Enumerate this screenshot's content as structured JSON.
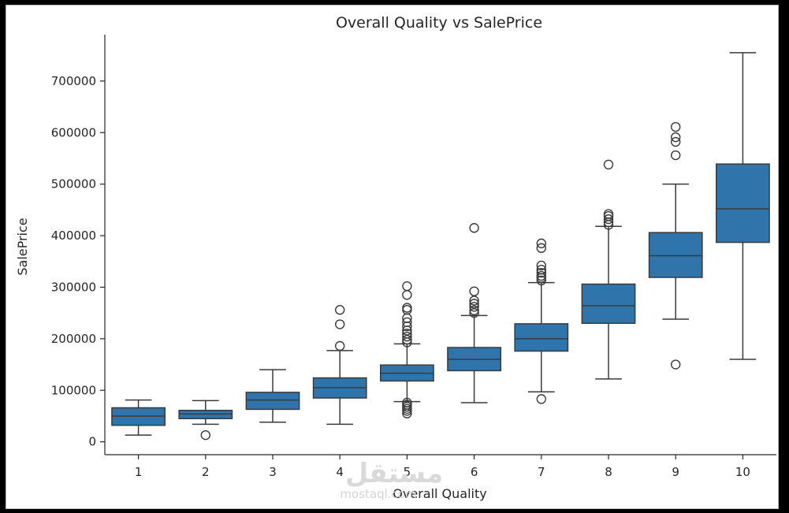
{
  "chart_data": {
    "type": "box",
    "title": "Overall Quality vs SalePrice",
    "xlabel": "Overall Quality",
    "ylabel": "SalePrice",
    "ylim": [
      -25000,
      790000
    ],
    "yticks": [
      0,
      100000,
      200000,
      300000,
      400000,
      500000,
      600000,
      700000
    ],
    "ytick_labels": [
      "0",
      "100000",
      "200000",
      "300000",
      "400000",
      "500000",
      "600000",
      "700000"
    ],
    "box_color": "#2f75ac",
    "line_color": "#3a3a3a",
    "categories": [
      "1",
      "2",
      "3",
      "4",
      "5",
      "6",
      "7",
      "8",
      "9",
      "10"
    ],
    "boxes": [
      {
        "category": "1",
        "whisker_low": 13000,
        "q1": 32000,
        "median": 50000,
        "q3": 66000,
        "whisker_high": 81000,
        "outliers": []
      },
      {
        "category": "2",
        "whisker_low": 34000,
        "q1": 45000,
        "median": 54000,
        "q3": 61000,
        "whisker_high": 80000,
        "outliers": [
          13000
        ]
      },
      {
        "category": "3",
        "whisker_low": 38000,
        "q1": 63000,
        "median": 81000,
        "q3": 96000,
        "whisker_high": 140000,
        "outliers": []
      },
      {
        "category": "4",
        "whisker_low": 34000,
        "q1": 85000,
        "median": 105000,
        "q3": 124000,
        "whisker_high": 177000,
        "outliers": [
          186000,
          228000,
          256000
        ]
      },
      {
        "category": "5",
        "whisker_low": 78000,
        "q1": 118000,
        "median": 133000,
        "q3": 149000,
        "whisker_high": 190000,
        "outliers": [
          55000,
          60000,
          64000,
          68000,
          72000,
          76000,
          193000,
          198000,
          204000,
          210000,
          216000,
          224000,
          232000,
          240000,
          256000,
          260000,
          285000,
          302000
        ]
      },
      {
        "category": "6",
        "whisker_low": 76000,
        "q1": 138000,
        "median": 160000,
        "q3": 183000,
        "whisker_high": 245000,
        "outliers": [
          250000,
          255000,
          262000,
          268000,
          274000,
          292000,
          415000
        ]
      },
      {
        "category": "7",
        "whisker_low": 97000,
        "q1": 176000,
        "median": 200000,
        "q3": 229000,
        "whisker_high": 309000,
        "outliers": [
          83000,
          313000,
          318000,
          322000,
          328000,
          334000,
          342000,
          376000,
          385000
        ]
      },
      {
        "category": "8",
        "whisker_low": 122000,
        "q1": 230000,
        "median": 264000,
        "q3": 306000,
        "whisker_high": 418000,
        "outliers": [
          421000,
          426000,
          432000,
          438000,
          442000,
          538000
        ]
      },
      {
        "category": "9",
        "whisker_low": 238000,
        "q1": 319000,
        "median": 361000,
        "q3": 406000,
        "whisker_high": 500000,
        "outliers": [
          150000,
          556000,
          582000,
          591000,
          611000
        ]
      },
      {
        "category": "10",
        "whisker_low": 160000,
        "q1": 387000,
        "median": 452000,
        "q3": 539000,
        "whisker_high": 755000,
        "outliers": []
      }
    ],
    "grid": false,
    "legend": "none"
  },
  "watermark": {
    "main": "مستقل",
    "sub": "mostaql.com"
  }
}
